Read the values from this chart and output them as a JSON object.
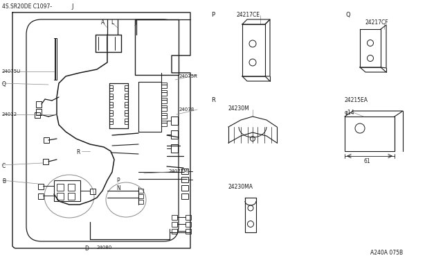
{
  "bg_color": "#ffffff",
  "line_color": "#1a1a1a",
  "gray_color": "#888888",
  "title": "4S.SR20DE C1097-",
  "title_j": "J",
  "catalog": "A240A 075B",
  "labels": {
    "24075U": "24075U",
    "Q": "Q",
    "24075R": "24075R",
    "24012": "24012",
    "24078": "24078",
    "R": "R",
    "C": "C",
    "B": "B",
    "P": "P",
    "N": "N",
    "24077M": "24077M",
    "D": "D",
    "24080": "24080",
    "A": "A",
    "L": "L",
    "J": "J",
    "P2": "P",
    "Q2": "Q",
    "R2": "R",
    "24217CE": "24217CE",
    "24217CF": "24217CF",
    "24215EA": "24215EA",
    "24230M": "24230M",
    "24230MA": "24230MA",
    "phi14": "φ14",
    "61": "61"
  }
}
